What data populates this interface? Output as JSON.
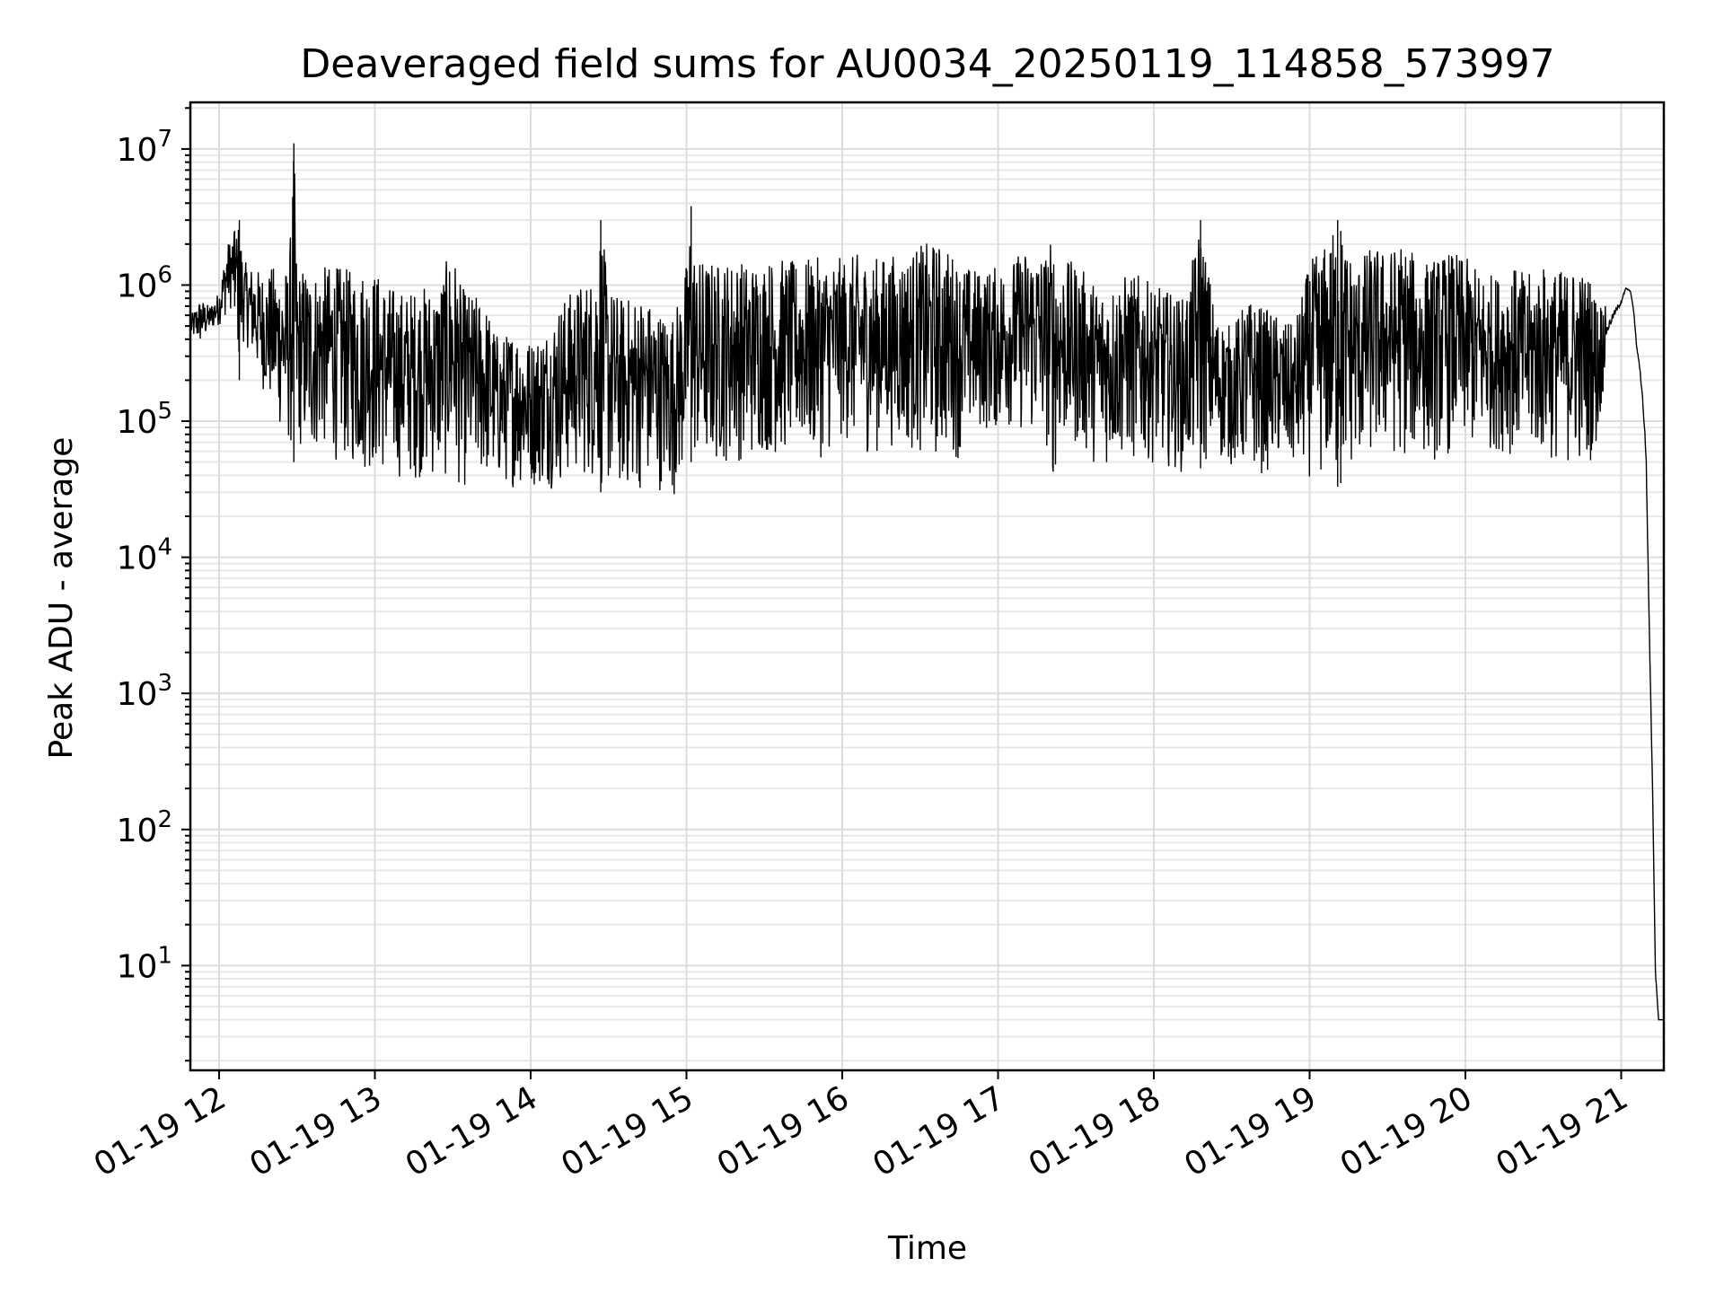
{
  "chart_data": {
    "type": "line",
    "title": "Deaveraged field sums for AU0034_20250119_114858_573997",
    "xlabel": "Time",
    "ylabel": "Peak ADU - average",
    "yscale": "log",
    "ylim": [
      1.7,
      22000000
    ],
    "xlim": [
      "01-19 11:49",
      "01-19 21:17"
    ],
    "grid": true,
    "line_color": "#000000",
    "x_ticks": [
      "01-19 12",
      "01-19 13",
      "01-19 14",
      "01-19 15",
      "01-19 16",
      "01-19 17",
      "01-19 18",
      "01-19 19",
      "01-19 20",
      "01-19 21"
    ],
    "x_tick_hours": [
      12,
      13,
      14,
      15,
      16,
      17,
      18,
      19,
      20,
      21
    ],
    "y_ticks": [
      {
        "base": "10",
        "exp": "1",
        "value": 10
      },
      {
        "base": "10",
        "exp": "2",
        "value": 100
      },
      {
        "base": "10",
        "exp": "3",
        "value": 1000
      },
      {
        "base": "10",
        "exp": "4",
        "value": 10000
      },
      {
        "base": "10",
        "exp": "5",
        "value": 100000
      },
      {
        "base": "10",
        "exp": "6",
        "value": 1000000
      },
      {
        "base": "10",
        "exp": "7",
        "value": 10000000
      }
    ],
    "series": [
      {
        "x_hours": [
          11.82,
          11.88,
          11.94,
          12.0,
          12.05,
          12.1,
          12.13,
          12.16,
          12.2,
          12.25,
          12.3,
          12.35,
          12.4,
          12.45,
          12.48,
          12.5,
          12.55,
          12.6,
          12.65,
          12.7,
          12.75,
          12.8,
          12.85,
          12.9,
          12.95,
          13.0,
          13.1,
          13.2,
          13.3,
          13.4,
          13.5,
          13.55,
          13.6,
          13.7,
          13.8,
          13.9,
          14.0,
          14.1,
          14.2,
          14.3,
          14.4,
          14.45,
          14.5,
          14.6,
          14.7,
          14.8,
          14.9,
          14.95,
          15.0,
          15.03,
          15.06,
          15.1,
          15.2,
          15.3,
          15.4,
          15.5,
          15.6,
          15.7,
          15.8,
          15.9,
          16.0,
          16.1,
          16.2,
          16.3,
          16.4,
          16.5,
          16.6,
          16.7,
          16.75,
          16.8,
          16.9,
          17.0,
          17.1,
          17.2,
          17.3,
          17.35,
          17.4,
          17.5,
          17.6,
          17.7,
          17.8,
          17.9,
          18.0,
          18.1,
          18.2,
          18.3,
          18.4,
          18.5,
          18.6,
          18.7,
          18.8,
          18.9,
          19.0,
          19.1,
          19.18,
          19.2,
          19.3,
          19.4,
          19.5,
          19.6,
          19.7,
          19.8,
          19.9,
          20.0,
          20.1,
          20.2,
          20.3,
          20.4,
          20.5,
          20.6,
          20.7,
          20.8,
          20.85,
          20.9,
          20.95,
          21.0,
          21.03,
          21.06,
          21.08,
          21.1,
          21.12,
          21.14,
          21.16,
          21.18,
          21.2,
          21.22,
          21.24,
          21.26,
          21.27
        ],
        "y_max": [
          600000,
          800000,
          700000,
          900000,
          2000000,
          2500000,
          3000000,
          1500000,
          1400000,
          1300000,
          1200000,
          1400000,
          1300000,
          1400000,
          11000000,
          1300000,
          1400000,
          1300000,
          1350000,
          1400000,
          1400000,
          1350000,
          1300000,
          1400000,
          1300000,
          1300000,
          1000000,
          900000,
          1000000,
          1000000,
          2000000,
          1000000,
          900000,
          800000,
          400000,
          500000,
          400000,
          500000,
          800000,
          1000000,
          1200000,
          3000000,
          1000000,
          800000,
          900000,
          700000,
          600000,
          800000,
          1500000,
          3800000,
          1500000,
          1600000,
          1500000,
          1600000,
          1500000,
          1600000,
          1600000,
          1500000,
          1600000,
          1600000,
          1600000,
          1700000,
          1600000,
          1700000,
          1700000,
          2000000,
          2100000,
          1800000,
          1500000,
          1400000,
          1300000,
          1400000,
          1600000,
          2000000,
          1800000,
          2300000,
          1500000,
          1500000,
          1100000,
          1000000,
          1200000,
          1200000,
          1000000,
          900000,
          800000,
          3000000,
          600000,
          500000,
          800000,
          700000,
          600000,
          500000,
          1500000,
          2000000,
          3000000,
          2500000,
          1500000,
          2000000,
          1800000,
          2200000,
          1500000,
          1600000,
          1800000,
          1600000,
          1300000,
          1200000,
          1400000,
          1200000,
          1400000,
          1300000,
          1400000,
          1200000,
          800000,
          800000,
          900000,
          950000,
          1000000,
          950000,
          700000,
          400000,
          300000,
          200000,
          100000,
          5000,
          300,
          10,
          4,
          4,
          4
        ],
        "y_min": [
          400000,
          350000,
          450000,
          500000,
          600000,
          700000,
          200000,
          400000,
          300000,
          200000,
          150000,
          100000,
          80000,
          60000,
          50000,
          60000,
          55000,
          50000,
          60000,
          55000,
          50000,
          50000,
          45000,
          40000,
          42000,
          40000,
          38000,
          36000,
          37000,
          35000,
          35000,
          32000,
          30000,
          35000,
          33000,
          32000,
          32000,
          31000,
          33000,
          38000,
          35000,
          30000,
          28000,
          29000,
          30000,
          32000,
          27000,
          30000,
          40000,
          50000,
          45000,
          42000,
          45000,
          50000,
          48000,
          55000,
          52000,
          60000,
          50000,
          55000,
          70000,
          60000,
          55000,
          65000,
          60000,
          55000,
          50000,
          60000,
          50000,
          70000,
          80000,
          80000,
          90000,
          70000,
          70000,
          33000,
          60000,
          60000,
          50000,
          45000,
          50000,
          45000,
          50000,
          45000,
          40000,
          45000,
          50000,
          45000,
          40000,
          40000,
          45000,
          40000,
          38000,
          35000,
          33000,
          35000,
          45000,
          50000,
          55000,
          50000,
          55000,
          50000,
          55000,
          60000,
          55000,
          60000,
          55000,
          50000,
          50000,
          48000,
          45000,
          50000,
          60000,
          250000,
          400000,
          600000,
          900000,
          850000,
          600000,
          300000,
          200000,
          90000,
          30000,
          2000,
          200,
          8,
          4,
          4,
          4
        ]
      }
    ]
  }
}
